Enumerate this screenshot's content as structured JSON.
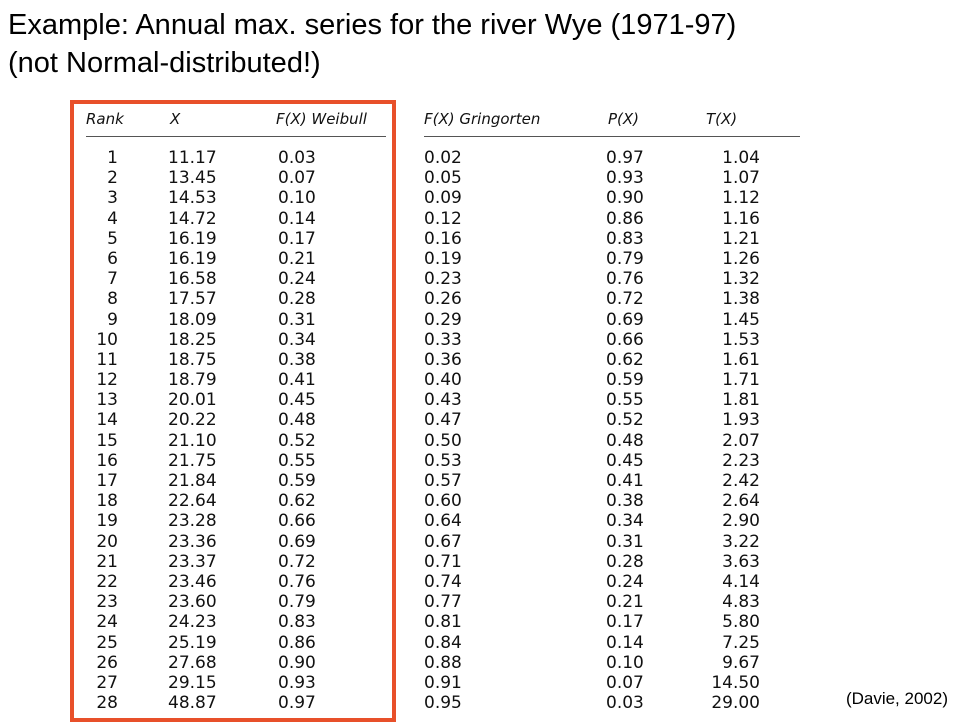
{
  "title": {
    "line1": "Example: Annual max. series for the river Wye (1971-97)",
    "line2": "(not Normal-distributed!)"
  },
  "table": {
    "headers": {
      "rank": "Rank",
      "x": "X",
      "weibull": "F(X) Weibull",
      "gringorten": "F(X) Gringorten",
      "p": "P(X)",
      "t": "T(X)"
    },
    "rank": [
      "1",
      "2",
      "3",
      "4",
      "5",
      "6",
      "7",
      "8",
      "9",
      "10",
      "11",
      "12",
      "13",
      "14",
      "15",
      "16",
      "17",
      "18",
      "19",
      "20",
      "21",
      "22",
      "23",
      "24",
      "25",
      "26",
      "27",
      "28"
    ],
    "x": [
      "11.17",
      "13.45",
      "14.53",
      "14.72",
      "16.19",
      "16.19",
      "16.58",
      "17.57",
      "18.09",
      "18.25",
      "18.75",
      "18.79",
      "20.01",
      "20.22",
      "21.10",
      "21.75",
      "21.84",
      "22.64",
      "23.28",
      "23.36",
      "23.37",
      "23.46",
      "23.60",
      "24.23",
      "25.19",
      "27.68",
      "29.15",
      "48.87"
    ],
    "weibull": [
      "0.03",
      "0.07",
      "0.10",
      "0.14",
      "0.17",
      "0.21",
      "0.24",
      "0.28",
      "0.31",
      "0.34",
      "0.38",
      "0.41",
      "0.45",
      "0.48",
      "0.52",
      "0.55",
      "0.59",
      "0.62",
      "0.66",
      "0.69",
      "0.72",
      "0.76",
      "0.79",
      "0.83",
      "0.86",
      "0.90",
      "0.93",
      "0.97"
    ],
    "gringorten": [
      "0.02",
      "0.05",
      "0.09",
      "0.12",
      "0.16",
      "0.19",
      "0.23",
      "0.26",
      "0.29",
      "0.33",
      "0.36",
      "0.40",
      "0.43",
      "0.47",
      "0.50",
      "0.53",
      "0.57",
      "0.60",
      "0.64",
      "0.67",
      "0.71",
      "0.74",
      "0.77",
      "0.81",
      "0.84",
      "0.88",
      "0.91",
      "0.95"
    ],
    "p": [
      "0.97",
      "0.93",
      "0.90",
      "0.86",
      "0.83",
      "0.79",
      "0.76",
      "0.72",
      "0.69",
      "0.66",
      "0.62",
      "0.59",
      "0.55",
      "0.52",
      "0.48",
      "0.45",
      "0.41",
      "0.38",
      "0.34",
      "0.31",
      "0.28",
      "0.24",
      "0.21",
      "0.17",
      "0.14",
      "0.10",
      "0.07",
      "0.03"
    ],
    "t": [
      "1.04",
      "1.07",
      "1.12",
      "1.16",
      "1.21",
      "1.26",
      "1.32",
      "1.38",
      "1.45",
      "1.53",
      "1.61",
      "1.71",
      "1.81",
      "1.93",
      "2.07",
      "2.23",
      "2.42",
      "2.64",
      "2.90",
      "3.22",
      "3.63",
      "4.14",
      "4.83",
      "5.80",
      "7.25",
      "9.67",
      "14.50",
      "29.00"
    ]
  },
  "highlight_color": "#e8502a",
  "source": "(Davie, 2002)"
}
